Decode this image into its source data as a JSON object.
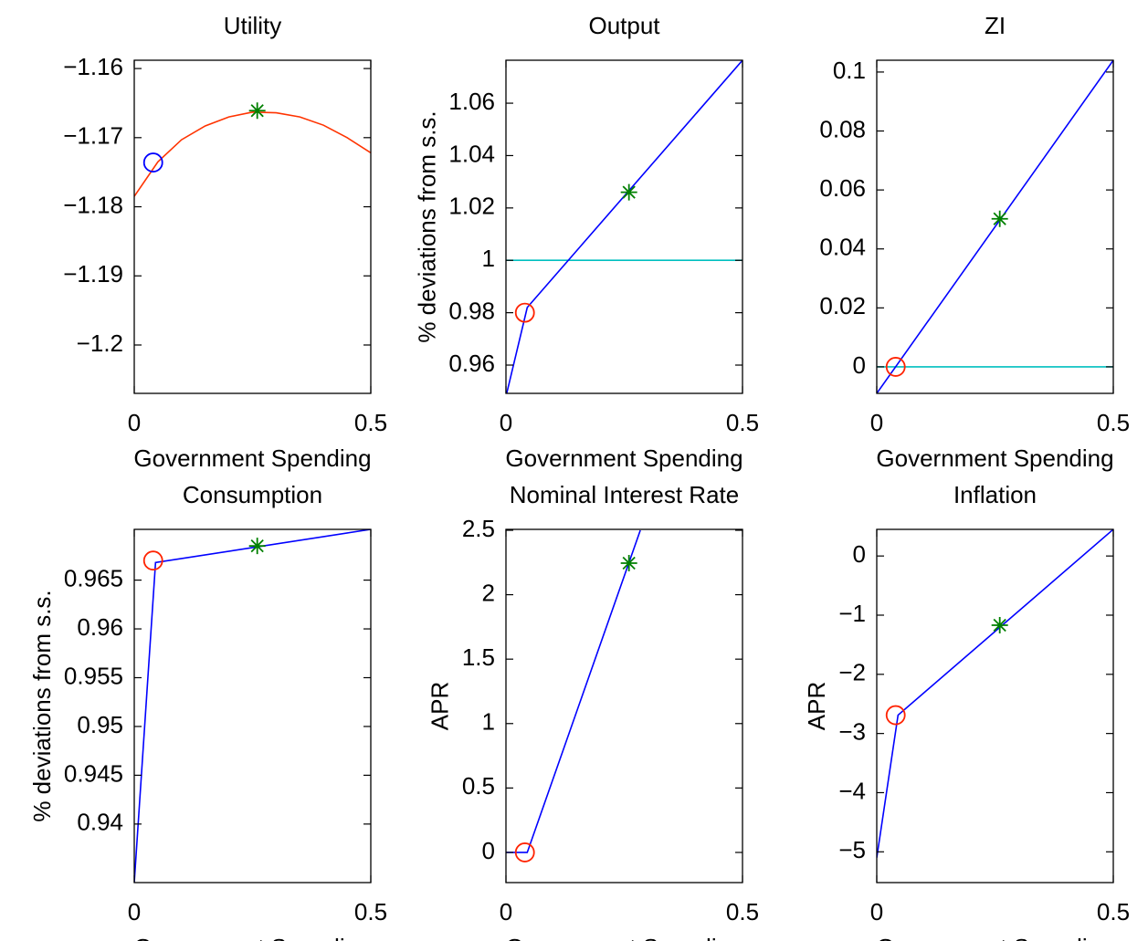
{
  "chart_data": [
    {
      "type": "line",
      "title": "Utility",
      "xlabel": "Government Spending",
      "xlim": [
        0,
        0.5
      ],
      "xticks": [
        0,
        0.5
      ],
      "ylim": [
        -1.207,
        -1.1588
      ],
      "yticks": [
        {
          "value": -1.16,
          "label": "−1.16"
        },
        {
          "value": -1.17,
          "label": "−1.17"
        },
        {
          "value": -1.18,
          "label": "−1.18"
        },
        {
          "value": -1.19,
          "label": "−1.19"
        },
        {
          "value": -1.2,
          "label": "−1.2"
        }
      ],
      "series": [
        {
          "style": "line",
          "color": "#ff3300",
          "x": [
            0,
            0.05,
            0.1,
            0.15,
            0.2,
            0.25,
            0.3,
            0.35,
            0.4,
            0.45,
            0.5
          ],
          "values": [
            -1.1785,
            -1.1735,
            -1.1703,
            -1.1683,
            -1.167,
            -1.1663,
            -1.1664,
            -1.167,
            -1.1682,
            -1.17,
            -1.1722
          ]
        },
        {
          "style": "circle",
          "color": "#0000ff",
          "x": [
            0.04
          ],
          "values": [
            -1.1736
          ]
        },
        {
          "style": "star",
          "color": "#008000",
          "x": [
            0.26
          ],
          "values": [
            -1.1661
          ]
        }
      ]
    },
    {
      "type": "line",
      "title": "Output",
      "xlabel": "Government Spending",
      "ylabel": "% deviations from s.s.",
      "xlim": [
        0,
        0.5
      ],
      "xticks": [
        0,
        0.5
      ],
      "ylim": [
        0.9492,
        1.0764
      ],
      "yticks": [
        0.96,
        0.98,
        1,
        1.02,
        1.04,
        1.06
      ],
      "series": [
        {
          "style": "line",
          "color": "#00bfbf",
          "x": [
            0,
            0.5
          ],
          "values": [
            1,
            1
          ]
        },
        {
          "style": "line",
          "color": "#0000ff",
          "x": [
            0,
            0.045,
            0.5
          ],
          "values": [
            0.948,
            0.982,
            1.0764
          ]
        },
        {
          "style": "circle",
          "color": "#ff2200",
          "x": [
            0.04
          ],
          "values": [
            0.98
          ]
        },
        {
          "style": "star",
          "color": "#008000",
          "x": [
            0.26
          ],
          "values": [
            1.026
          ]
        }
      ]
    },
    {
      "type": "line",
      "title": "ZI",
      "xlabel": "Government Spending",
      "xlim": [
        0,
        0.5
      ],
      "xticks": [
        0,
        0.5
      ],
      "ylim": [
        -0.009,
        0.104
      ],
      "yticks": [
        0,
        0.02,
        0.04,
        0.06,
        0.08,
        0.1
      ],
      "series": [
        {
          "style": "line",
          "color": "#00bfbf",
          "x": [
            0,
            0.5
          ],
          "values": [
            0,
            0
          ]
        },
        {
          "style": "line",
          "color": "#0000ff",
          "x": [
            0,
            0.5
          ],
          "values": [
            -0.009,
            0.104
          ]
        },
        {
          "style": "circle",
          "color": "#ff2200",
          "x": [
            0.04
          ],
          "values": [
            0
          ]
        },
        {
          "style": "star",
          "color": "#008000",
          "x": [
            0.26
          ],
          "values": [
            0.0502
          ]
        }
      ]
    },
    {
      "type": "line",
      "title": "Consumption",
      "xlabel": "Government Spending",
      "ylabel": "% deviations from s.s.",
      "xlim": [
        0,
        0.5
      ],
      "xticks": [
        0,
        0.5
      ],
      "ylim": [
        0.934,
        0.9702
      ],
      "yticks": [
        0.94,
        0.945,
        0.95,
        0.955,
        0.96,
        0.965
      ],
      "series": [
        {
          "style": "line",
          "color": "#0000ff",
          "x": [
            0,
            0.045,
            0.5
          ],
          "values": [
            0.934,
            0.9668,
            0.9702
          ]
        },
        {
          "style": "circle",
          "color": "#ff2200",
          "x": [
            0.04
          ],
          "values": [
            0.967
          ]
        },
        {
          "style": "star",
          "color": "#008000",
          "x": [
            0.26
          ],
          "values": [
            0.9685
          ]
        }
      ]
    },
    {
      "type": "line",
      "title": "Nominal Interest Rate",
      "xlabel": "Government Spending",
      "ylabel": "APR",
      "xlim": [
        0,
        0.5
      ],
      "xticks": [
        0,
        0.5
      ],
      "ylim": [
        -0.234,
        2.507
      ],
      "yticks": [
        0,
        0.5,
        1,
        1.5,
        2,
        2.5
      ],
      "series": [
        {
          "style": "line",
          "color": "#0000ff",
          "x": [
            0,
            0.045,
            0.284
          ],
          "values": [
            0,
            0,
            2.5
          ]
        },
        {
          "style": "circle",
          "color": "#ff2200",
          "x": [
            0.04
          ],
          "values": [
            0
          ]
        },
        {
          "style": "star",
          "color": "#008000",
          "x": [
            0.26
          ],
          "values": [
            2.245
          ]
        }
      ]
    },
    {
      "type": "line",
      "title": "Inflation",
      "xlabel": "Government Spending",
      "ylabel": "APR",
      "xlim": [
        0,
        0.5
      ],
      "xticks": [
        0,
        0.5
      ],
      "ylim": [
        -5.52,
        0.45
      ],
      "yticks": [
        {
          "value": -5,
          "label": "−5"
        },
        {
          "value": -4,
          "label": "−4"
        },
        {
          "value": -3,
          "label": "−3"
        },
        {
          "value": -2,
          "label": "−2"
        },
        {
          "value": -1,
          "label": "−1"
        },
        0
      ],
      "series": [
        {
          "style": "line",
          "color": "#0000ff",
          "x": [
            0,
            0.045,
            0.5
          ],
          "values": [
            -5.1,
            -2.69,
            0.45
          ]
        },
        {
          "style": "circle",
          "color": "#ff2200",
          "x": [
            0.04
          ],
          "values": [
            -2.69
          ]
        },
        {
          "style": "star",
          "color": "#008000",
          "x": [
            0.26
          ],
          "values": [
            -1.17
          ]
        }
      ]
    }
  ]
}
